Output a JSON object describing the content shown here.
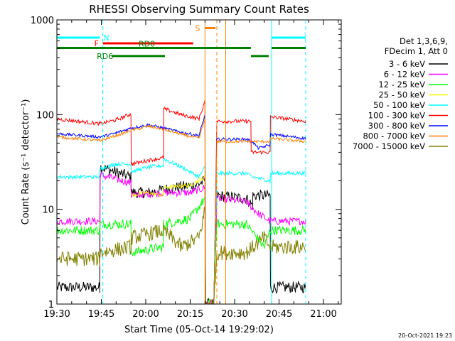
{
  "chart_data": {
    "type": "line",
    "title": "RHESSI Observing Summary Count Rates",
    "xlabel": "Start Time (05-Oct-14 19:29:02)",
    "ylabel": "Count Rate (s⁻¹ detector⁻¹)",
    "x_unit": "minutes after 19:30",
    "xlim": [
      0,
      96
    ],
    "ylim": [
      1,
      1000
    ],
    "yscale": "log",
    "x_ticks": [
      "19:30",
      "19:45",
      "20:00",
      "20:15",
      "20:30",
      "20:45",
      "21:00"
    ],
    "y_ticks": [
      "1",
      "10",
      "100",
      "1000"
    ],
    "legend_header": [
      "Det 1,3,6,9,",
      "FDecim 1, Att 0"
    ],
    "legend": [
      {
        "name": "3 - 6 keV",
        "color": "#000000"
      },
      {
        "name": "6 - 12 keV",
        "color": "#ff00ff"
      },
      {
        "name": "12 - 25 keV",
        "color": "#00ff00"
      },
      {
        "name": "25 - 50 keV",
        "color": "#ffff00"
      },
      {
        "name": "50 - 100 keV",
        "color": "#00ffff"
      },
      {
        "name": "100 - 300 keV",
        "color": "#ff0000"
      },
      {
        "name": "300 - 800 keV",
        "color": "#0000ff"
      },
      {
        "name": "800 - 7000 keV",
        "color": "#ff8000"
      },
      {
        "name": "7000 - 15000 keV",
        "color": "#808000"
      }
    ],
    "series": [
      {
        "name": "3 - 6 keV",
        "color": "#000000",
        "noise": 0.06,
        "points": [
          [
            0,
            1.5
          ],
          [
            14.5,
            1.5
          ],
          [
            14.6,
            28
          ],
          [
            25,
            22
          ],
          [
            25.1,
            15
          ],
          [
            31,
            15
          ],
          [
            40,
            17
          ],
          [
            47,
            18
          ],
          [
            50,
            20
          ],
          [
            50.2,
            1
          ],
          [
            53,
            1
          ],
          [
            54,
            14
          ],
          [
            64,
            13
          ],
          [
            66,
            11
          ],
          [
            66.2,
            14
          ],
          [
            72,
            14
          ],
          [
            72.1,
            1.5
          ],
          [
            84,
            1.5
          ]
        ]
      },
      {
        "name": "6 - 12 keV",
        "color": "#ff00ff",
        "noise": 0.04,
        "points": [
          [
            0,
            7.5
          ],
          [
            14.5,
            7.5
          ],
          [
            14.6,
            23
          ],
          [
            25,
            19
          ],
          [
            25.1,
            14
          ],
          [
            36,
            15
          ],
          [
            45,
            15
          ],
          [
            50,
            17
          ],
          [
            50.2,
            1
          ],
          [
            53,
            1
          ],
          [
            54,
            13
          ],
          [
            64,
            12
          ],
          [
            68,
            9
          ],
          [
            72,
            7.5
          ],
          [
            84,
            7.5
          ]
        ]
      },
      {
        "name": "12 - 25 keV",
        "color": "#00ff00",
        "noise": 0.05,
        "points": [
          [
            0,
            6
          ],
          [
            14.5,
            6
          ],
          [
            14.6,
            7
          ],
          [
            25,
            7
          ],
          [
            25.1,
            3.5
          ],
          [
            36,
            4
          ],
          [
            36.1,
            7
          ],
          [
            45,
            8
          ],
          [
            50,
            13
          ],
          [
            50.2,
            1
          ],
          [
            53,
            1
          ],
          [
            54,
            7
          ],
          [
            64,
            7
          ],
          [
            70,
            4
          ],
          [
            72,
            6
          ],
          [
            84,
            6
          ]
        ]
      },
      {
        "name": "25 - 50 keV",
        "color": "#ffff00",
        "noise": 0.02,
        "points": [
          [
            25.1,
            14
          ],
          [
            30,
            15
          ],
          [
            36,
            14
          ],
          [
            36.1,
            17
          ],
          [
            45,
            18
          ],
          [
            50,
            22
          ],
          [
            50.2,
            1
          ]
        ]
      },
      {
        "name": "50 - 100 keV",
        "color": "#00ffff",
        "noise": 0.02,
        "points": [
          [
            0,
            22
          ],
          [
            14.5,
            22
          ],
          [
            14.6,
            27
          ],
          [
            20,
            30
          ],
          [
            25,
            30
          ],
          [
            25.1,
            25
          ],
          [
            31,
            28
          ],
          [
            36,
            29
          ],
          [
            36.1,
            34
          ],
          [
            42,
            28
          ],
          [
            48,
            22
          ],
          [
            50,
            28
          ],
          [
            50.2,
            1
          ],
          [
            53,
            1
          ],
          [
            54,
            24
          ],
          [
            64,
            24
          ],
          [
            66,
            22
          ],
          [
            72,
            20
          ],
          [
            72.1,
            24
          ],
          [
            84,
            24
          ]
        ]
      },
      {
        "name": "100 - 300 keV",
        "color": "#ff0000",
        "noise": 0.02,
        "points": [
          [
            0,
            90
          ],
          [
            14.5,
            80
          ],
          [
            14.6,
            80
          ],
          [
            20,
            88
          ],
          [
            24.5,
            100
          ],
          [
            25,
            100
          ],
          [
            25.1,
            30
          ],
          [
            31,
            33
          ],
          [
            36,
            35
          ],
          [
            36.1,
            115
          ],
          [
            42,
            100
          ],
          [
            48,
            90
          ],
          [
            50,
            140
          ],
          [
            50.2,
            1
          ],
          [
            53,
            1
          ],
          [
            54,
            85
          ],
          [
            64,
            85
          ],
          [
            65.5,
            85
          ],
          [
            65.6,
            40
          ],
          [
            72,
            40
          ],
          [
            72.1,
            95
          ],
          [
            84,
            85
          ]
        ]
      },
      {
        "name": "300 - 800 keV",
        "color": "#0000ff",
        "noise": 0.015,
        "points": [
          [
            0,
            63
          ],
          [
            14.5,
            58
          ],
          [
            14.6,
            58
          ],
          [
            20,
            64
          ],
          [
            25,
            72
          ],
          [
            31,
            78
          ],
          [
            36,
            72
          ],
          [
            42,
            65
          ],
          [
            48,
            60
          ],
          [
            50,
            100
          ],
          [
            50.2,
            1
          ],
          [
            53,
            1
          ],
          [
            54,
            55
          ],
          [
            64,
            55
          ],
          [
            66,
            52
          ],
          [
            68,
            44
          ],
          [
            72,
            48
          ],
          [
            72.1,
            62
          ],
          [
            84,
            56
          ]
        ]
      },
      {
        "name": "800 - 7000 keV",
        "color": "#ff8000",
        "noise": 0.015,
        "points": [
          [
            0,
            58
          ],
          [
            14.5,
            53
          ],
          [
            14.6,
            53
          ],
          [
            20,
            60
          ],
          [
            25,
            68
          ],
          [
            31,
            75
          ],
          [
            36,
            70
          ],
          [
            42,
            62
          ],
          [
            48,
            56
          ],
          [
            50,
            90
          ],
          [
            50.2,
            1
          ],
          [
            53,
            1
          ],
          [
            54,
            52
          ],
          [
            64,
            52
          ],
          [
            72,
            52
          ],
          [
            72.1,
            56
          ],
          [
            84,
            52
          ]
        ]
      },
      {
        "name": "7000 - 15000 keV",
        "color": "#808000",
        "noise": 0.08,
        "points": [
          [
            0,
            3
          ],
          [
            14.5,
            3
          ],
          [
            14.6,
            3.5
          ],
          [
            25,
            4
          ],
          [
            25.1,
            5
          ],
          [
            36,
            6
          ],
          [
            42,
            4
          ],
          [
            48,
            5
          ],
          [
            50,
            10
          ],
          [
            50.2,
            1
          ],
          [
            53,
            1
          ],
          [
            54,
            3.5
          ],
          [
            64,
            3.5
          ],
          [
            70,
            5
          ],
          [
            72,
            4
          ],
          [
            84,
            4
          ]
        ]
      }
    ],
    "markers": [
      {
        "label": "N",
        "color": "#00ffff",
        "segments": [
          [
            0,
            14.5
          ],
          [
            72.5,
            84
          ]
        ],
        "y": 650
      },
      {
        "label": "F",
        "color": "#ff0000",
        "segments": [
          [
            15.5,
            46
          ]
        ],
        "y": 565
      },
      {
        "label": "S",
        "color": "#ff8000",
        "segments": [
          [
            50,
            53.5
          ]
        ],
        "y": 820
      },
      {
        "label": "RD0",
        "color": "#008000",
        "segments": [
          [
            0,
            65.5
          ],
          [
            72.5,
            84
          ]
        ],
        "y": 505
      },
      {
        "label": "RD6",
        "color": "#008000",
        "segments": [
          [
            18.5,
            36.5
          ],
          [
            65.5,
            71.5
          ]
        ],
        "y": 415
      }
    ],
    "vlines": [
      {
        "x": 0,
        "color": "#00ffff",
        "dash": true
      },
      {
        "x": 15.5,
        "color": "#00ffff",
        "dash": true
      },
      {
        "x": 72.5,
        "color": "#00ffff",
        "dash": false
      },
      {
        "x": 84,
        "color": "#00ffff",
        "dash": true
      },
      {
        "x": 50,
        "color": "#ff8000",
        "dash": false
      },
      {
        "x": 54,
        "color": "#ff8000",
        "dash": true
      },
      {
        "x": 57,
        "color": "#ff8000",
        "dash": false
      }
    ]
  },
  "footer_date": "20-Oct-2021 19:23"
}
